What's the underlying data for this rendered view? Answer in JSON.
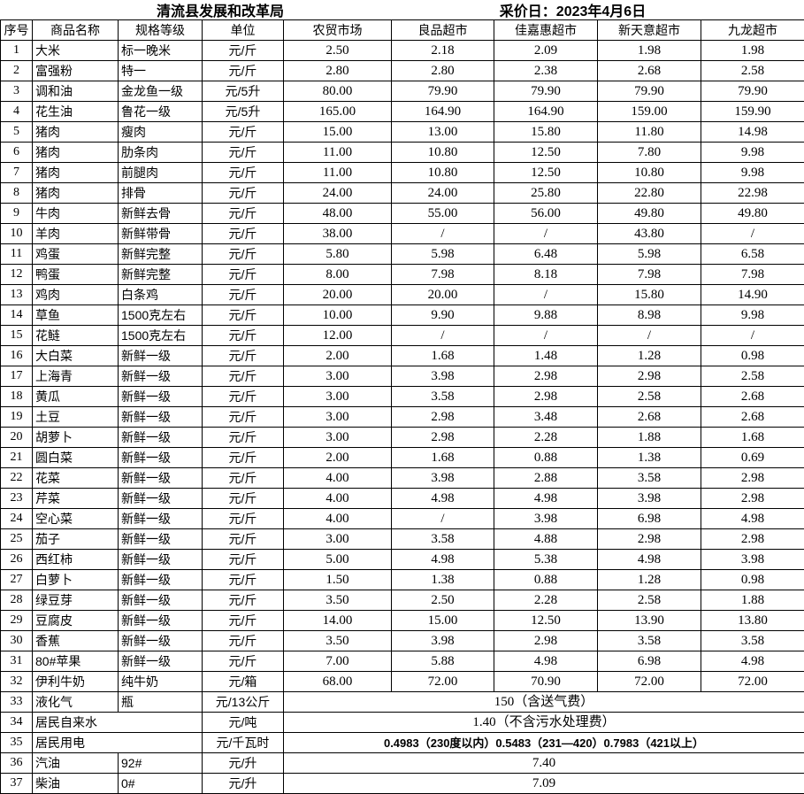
{
  "title": {
    "left": "清流县发展和改革局",
    "right": "采价日：2023年4月6日"
  },
  "colors": {
    "border": "#000000",
    "text": "#000000",
    "background": "#ffffff"
  },
  "table": {
    "columns": [
      "序号",
      "商品名称",
      "规格等级",
      "单位",
      "农贸市场",
      "良品超市",
      "佳嘉惠超市",
      "新天意超市",
      "九龙超市"
    ],
    "rows": [
      {
        "no": "1",
        "name": "大米",
        "spec": "标一晚米",
        "unit": "元/斤",
        "prices": [
          "2.50",
          "2.18",
          "2.09",
          "1.98",
          "1.98"
        ]
      },
      {
        "no": "2",
        "name": "富强粉",
        "spec": "特一",
        "unit": "元/斤",
        "prices": [
          "2.80",
          "2.80",
          "2.38",
          "2.68",
          "2.58"
        ]
      },
      {
        "no": "3",
        "name": "调和油",
        "spec": "金龙鱼一级",
        "unit": "元/5升",
        "prices": [
          "80.00",
          "79.90",
          "79.90",
          "79.90",
          "79.90"
        ]
      },
      {
        "no": "4",
        "name": "花生油",
        "spec": "鲁花一级",
        "unit": "元/5升",
        "prices": [
          "165.00",
          "164.90",
          "164.90",
          "159.00",
          "159.90"
        ]
      },
      {
        "no": "5",
        "name": "猪肉",
        "spec": "瘦肉",
        "unit": "元/斤",
        "prices": [
          "15.00",
          "13.00",
          "15.80",
          "11.80",
          "14.98"
        ]
      },
      {
        "no": "6",
        "name": "猪肉",
        "spec": "肋条肉",
        "unit": "元/斤",
        "prices": [
          "11.00",
          "10.80",
          "12.50",
          "7.80",
          "9.98"
        ]
      },
      {
        "no": "7",
        "name": "猪肉",
        "spec": "前腿肉",
        "unit": "元/斤",
        "prices": [
          "11.00",
          "10.80",
          "12.50",
          "10.80",
          "9.98"
        ]
      },
      {
        "no": "8",
        "name": "猪肉",
        "spec": "排骨",
        "unit": "元/斤",
        "prices": [
          "24.00",
          "24.00",
          "25.80",
          "22.80",
          "22.98"
        ]
      },
      {
        "no": "9",
        "name": "牛肉",
        "spec": "新鲜去骨",
        "unit": "元/斤",
        "prices": [
          "48.00",
          "55.00",
          "56.00",
          "49.80",
          "49.80"
        ]
      },
      {
        "no": "10",
        "name": "羊肉",
        "spec": "新鲜带骨",
        "unit": "元/斤",
        "prices": [
          "38.00",
          "/",
          "/",
          "43.80",
          "/"
        ]
      },
      {
        "no": "11",
        "name": "鸡蛋",
        "spec": "新鲜完整",
        "unit": "元/斤",
        "prices": [
          "5.80",
          "5.98",
          "6.48",
          "5.98",
          "6.58"
        ]
      },
      {
        "no": "12",
        "name": "鸭蛋",
        "spec": "新鲜完整",
        "unit": "元/斤",
        "prices": [
          "8.00",
          "7.98",
          "8.18",
          "7.98",
          "7.98"
        ]
      },
      {
        "no": "13",
        "name": "鸡肉",
        "spec": "白条鸡",
        "unit": "元/斤",
        "prices": [
          "20.00",
          "20.00",
          "/",
          "15.80",
          "14.90"
        ]
      },
      {
        "no": "14",
        "name": "草鱼",
        "spec": "1500克左右",
        "unit": "元/斤",
        "prices": [
          "10.00",
          "9.90",
          "9.88",
          "8.98",
          "9.98"
        ]
      },
      {
        "no": "15",
        "name": "花鲢",
        "spec": "1500克左右",
        "unit": "元/斤",
        "prices": [
          "12.00",
          "/",
          "/",
          "/",
          "/"
        ]
      },
      {
        "no": "16",
        "name": "大白菜",
        "spec": "新鲜一级",
        "unit": "元/斤",
        "prices": [
          "2.00",
          "1.68",
          "1.48",
          "1.28",
          "0.98"
        ]
      },
      {
        "no": "17",
        "name": "上海青",
        "spec": "新鲜一级",
        "unit": "元/斤",
        "prices": [
          "3.00",
          "3.98",
          "2.98",
          "2.98",
          "2.58"
        ]
      },
      {
        "no": "18",
        "name": "黄瓜",
        "spec": "新鲜一级",
        "unit": "元/斤",
        "prices": [
          "3.00",
          "3.58",
          "2.98",
          "2.58",
          "2.68"
        ]
      },
      {
        "no": "19",
        "name": "土豆",
        "spec": "新鲜一级",
        "unit": "元/斤",
        "prices": [
          "3.00",
          "2.98",
          "3.48",
          "2.68",
          "2.68"
        ]
      },
      {
        "no": "20",
        "name": "胡萝卜",
        "spec": "新鲜一级",
        "unit": "元/斤",
        "prices": [
          "3.00",
          "2.98",
          "2.28",
          "1.88",
          "1.68"
        ]
      },
      {
        "no": "21",
        "name": "圆白菜",
        "spec": "新鲜一级",
        "unit": "元/斤",
        "prices": [
          "2.00",
          "1.68",
          "0.88",
          "1.38",
          "0.69"
        ]
      },
      {
        "no": "22",
        "name": "花菜",
        "spec": "新鲜一级",
        "unit": "元/斤",
        "prices": [
          "4.00",
          "3.98",
          "2.88",
          "3.58",
          "2.98"
        ]
      },
      {
        "no": "23",
        "name": "芹菜",
        "spec": "新鲜一级",
        "unit": "元/斤",
        "prices": [
          "4.00",
          "4.98",
          "4.98",
          "3.98",
          "2.98"
        ]
      },
      {
        "no": "24",
        "name": "空心菜",
        "spec": "新鲜一级",
        "unit": "元/斤",
        "prices": [
          "4.00",
          "/",
          "3.98",
          "6.98",
          "4.98"
        ]
      },
      {
        "no": "25",
        "name": "茄子",
        "spec": "新鲜一级",
        "unit": "元/斤",
        "prices": [
          "3.00",
          "3.58",
          "4.88",
          "2.98",
          "2.98"
        ]
      },
      {
        "no": "26",
        "name": "西红柿",
        "spec": "新鲜一级",
        "unit": "元/斤",
        "prices": [
          "5.00",
          "4.98",
          "5.38",
          "4.98",
          "3.98"
        ]
      },
      {
        "no": "27",
        "name": "白萝卜",
        "spec": "新鲜一级",
        "unit": "元/斤",
        "prices": [
          "1.50",
          "1.38",
          "0.88",
          "1.28",
          "0.98"
        ]
      },
      {
        "no": "28",
        "name": "绿豆芽",
        "spec": "新鲜一级",
        "unit": "元/斤",
        "prices": [
          "3.50",
          "2.50",
          "2.28",
          "2.58",
          "1.88"
        ]
      },
      {
        "no": "29",
        "name": "豆腐皮",
        "spec": "新鲜一级",
        "unit": "元/斤",
        "prices": [
          "14.00",
          "15.00",
          "12.50",
          "13.90",
          "13.80"
        ]
      },
      {
        "no": "30",
        "name": "香蕉",
        "spec": "新鲜一级",
        "unit": "元/斤",
        "prices": [
          "3.50",
          "3.98",
          "2.98",
          "3.58",
          "3.58"
        ]
      },
      {
        "no": "31",
        "name": "80#苹果",
        "spec": "新鲜一级",
        "unit": "元/斤",
        "prices": [
          "7.00",
          "5.88",
          "4.98",
          "6.98",
          "4.98"
        ]
      },
      {
        "no": "32",
        "name": "伊利牛奶",
        "spec": "纯牛奶",
        "unit": "元/箱",
        "prices": [
          "68.00",
          "72.00",
          "70.90",
          "72.00",
          "72.00"
        ]
      },
      {
        "no": "33",
        "name": "液化气",
        "spec": "瓶",
        "unit": "元/13公斤",
        "merged": "150（含送气费）"
      },
      {
        "no": "34",
        "name": "居民自来水",
        "spec": null,
        "unit": "元/吨",
        "merged": "1.40（不含污水处理费）"
      },
      {
        "no": "35",
        "name": "居民用电",
        "spec": null,
        "unit": "元/千瓦时",
        "merged": "0.4983（230度以内）0.5483（231—420）0.7983（421以上）",
        "merged_sans": true
      },
      {
        "no": "36",
        "name": "汽油",
        "spec": "92#",
        "unit": "元/升",
        "merged": "7.40"
      },
      {
        "no": "37",
        "name": "柴油",
        "spec": "0#",
        "unit": "元/升",
        "merged": "7.09"
      }
    ]
  }
}
